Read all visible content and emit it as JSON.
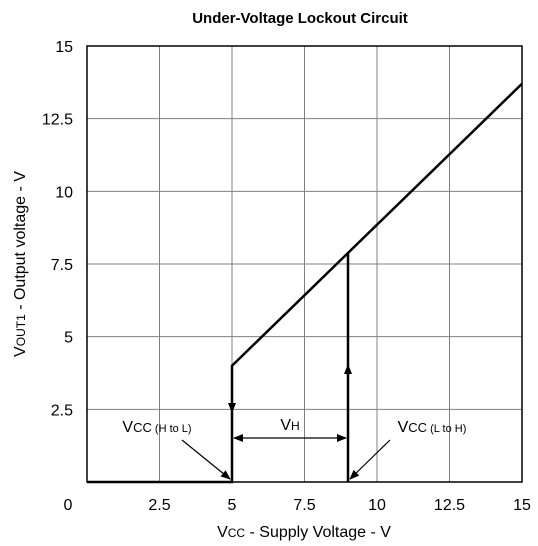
{
  "chart_data": {
    "type": "line",
    "title": "Under-Voltage Lockout Circuit",
    "x_label": {
      "main": "V",
      "sub": "CC",
      "rest": " - Supply Voltage - V"
    },
    "y_label": {
      "main": "V",
      "sub": "OUT1",
      "rest": " - Output voltage - V"
    },
    "xlim": [
      0,
      15
    ],
    "ylim": [
      0,
      15
    ],
    "xticks": [
      0,
      2.5,
      5,
      7.5,
      10,
      12.5,
      15
    ],
    "yticks": [
      0,
      2.5,
      5,
      7.5,
      10,
      12.5,
      15
    ],
    "grid": true,
    "series": [
      {
        "color": "#000000",
        "x": [
          0,
          5,
          5,
          15
        ],
        "values": [
          0,
          0,
          4,
          13.7
        ]
      },
      {
        "color": "#000000",
        "x": [
          9,
          9
        ],
        "values": [
          0,
          7.9
        ]
      }
    ],
    "annotations": [
      {
        "main": "V",
        "sub": "CC",
        "note": " (H to L)"
      },
      {
        "main": "V",
        "sub": "CC",
        "note": " (L to H)"
      },
      {
        "main": "V",
        "sub": "H"
      }
    ]
  }
}
